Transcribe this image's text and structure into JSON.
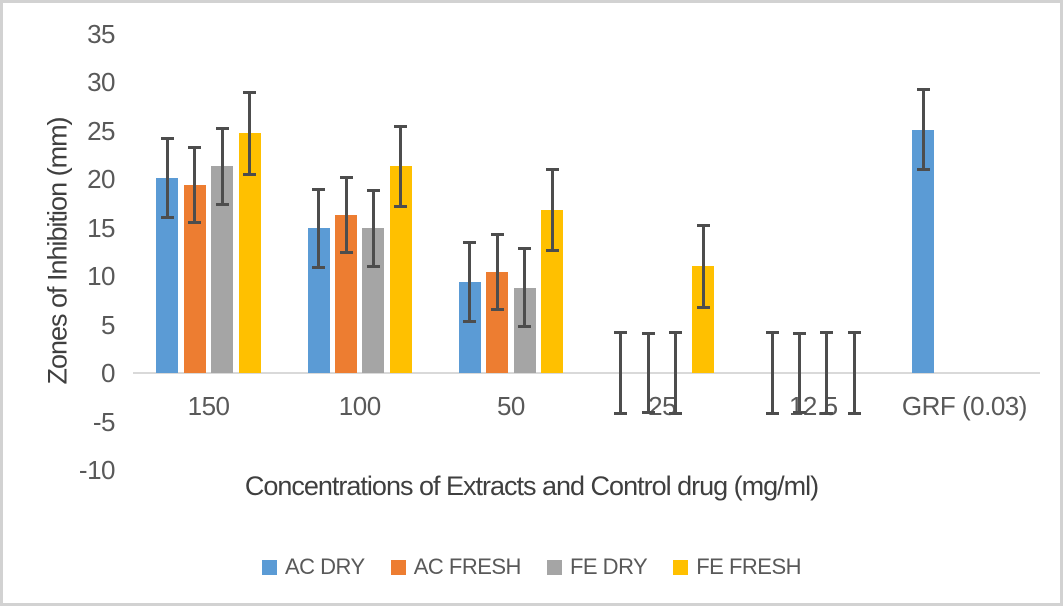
{
  "frame": {
    "background": "#ffffff",
    "border_color": "#d2d2d2"
  },
  "chart_data": {
    "type": "bar",
    "title": "",
    "xlabel": "Concentrations of Extracts and Control drug (mg/ml)",
    "ylabel": "Zones of Inhibition (mm)",
    "categories": [
      "150",
      "100",
      "50",
      "25",
      "12.5",
      "GRF (0.03)"
    ],
    "series": [
      {
        "name": "AC DRY",
        "color": "#5B9BD5",
        "values": [
          20.1,
          14.9,
          9.4,
          0,
          0,
          25.1
        ],
        "errors": [
          4.2,
          4.2,
          4.2,
          4.3,
          4.3,
          4.3
        ]
      },
      {
        "name": "AC FRESH",
        "color": "#ED7D31",
        "values": [
          19.4,
          16.3,
          10.4,
          0,
          0,
          null
        ],
        "errors": [
          4.0,
          4.0,
          4.0,
          4.2,
          4.2,
          null
        ]
      },
      {
        "name": "FE DRY",
        "color": "#A5A5A5",
        "values": [
          21.3,
          14.9,
          8.8,
          0,
          0,
          null
        ],
        "errors": [
          4.1,
          4.1,
          4.2,
          4.3,
          4.3,
          null
        ]
      },
      {
        "name": "FE FRESH",
        "color": "#FFC000",
        "values": [
          24.7,
          21.3,
          16.8,
          11.0,
          0,
          null
        ],
        "errors": [
          4.4,
          4.3,
          4.3,
          4.4,
          4.3,
          null
        ]
      }
    ],
    "yticks": [
      35,
      30,
      25,
      20,
      15,
      10,
      5,
      0,
      -5,
      -10
    ],
    "ylim": [
      -10,
      35
    ],
    "grid": false,
    "legend_position": "bottom",
    "colors": {
      "axis_line": "#D9D9D9",
      "error_bar": "#4d4d4d",
      "tick_text": "#595959",
      "title_text": "#3f3f3f"
    }
  }
}
